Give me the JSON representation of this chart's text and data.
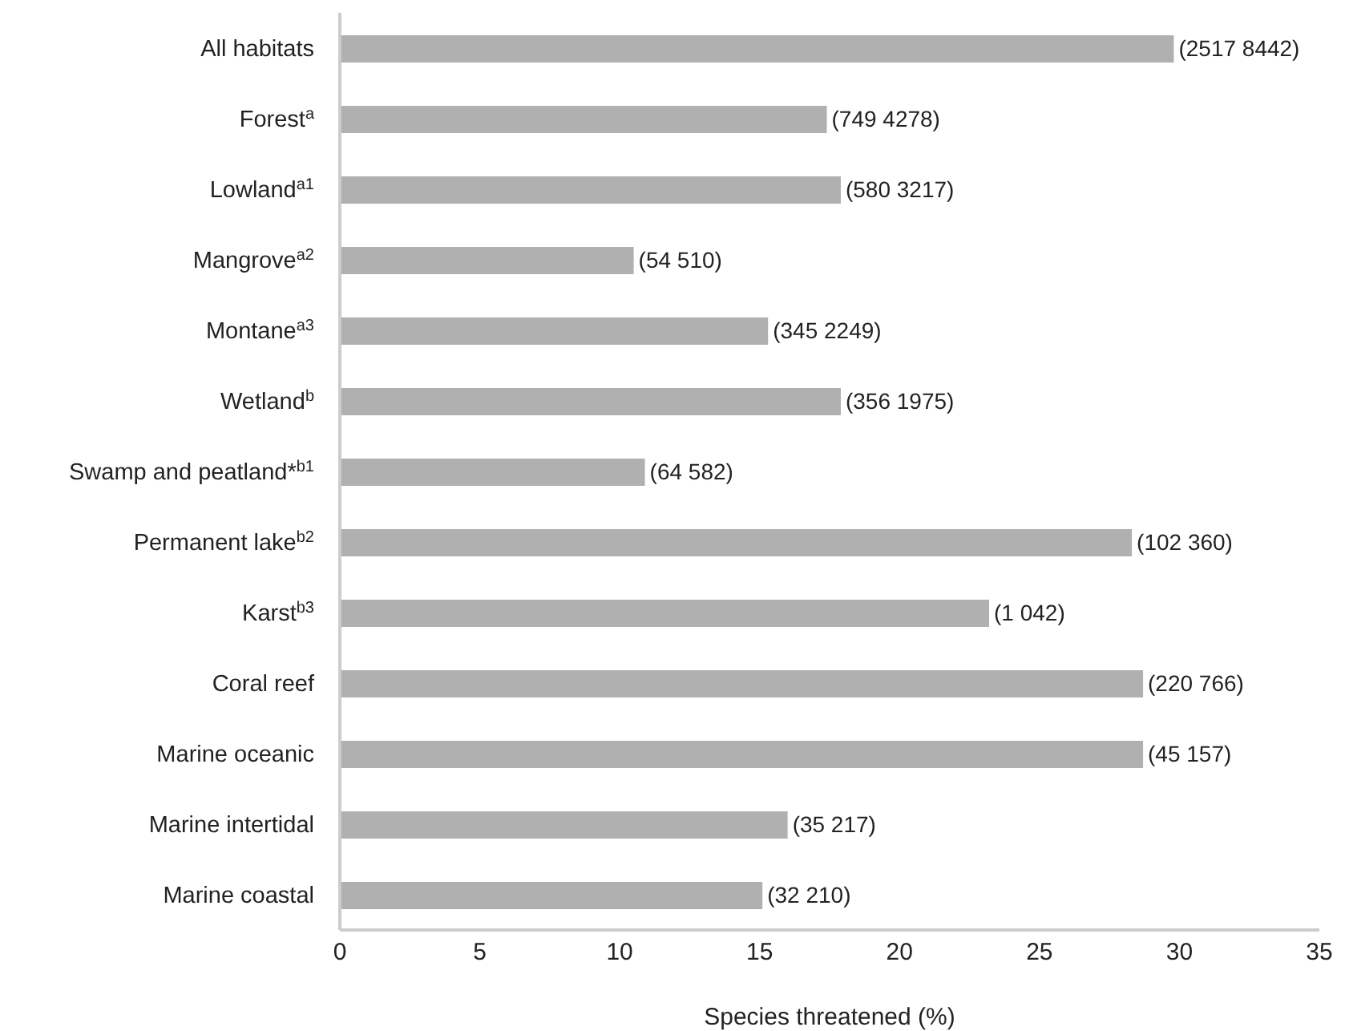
{
  "chart_data": {
    "type": "bar",
    "orientation": "horizontal",
    "categories": [
      "All habitats",
      "Forest$^{a}$",
      "Lowland$^{a1}$",
      "Mangrove$^{a2}$",
      "Montane$^{a3}$",
      "Wetland$^{b}$",
      "Swamp and peatland*$^{b1}$",
      "Permanent lake$^{b2}$",
      "Karst$^{b3}$",
      "Coral reef",
      "Marine oceanic",
      "Marine intertidal",
      "Marine coastal"
    ],
    "values": [
      29.8,
      17.4,
      17.9,
      10.5,
      15.3,
      17.9,
      10.9,
      28.3,
      23.2,
      28.7,
      28.7,
      16.0,
      15.1
    ],
    "annotations": [
      {
        "text": "(2517 8442)",
        "x": 29.8,
        "y": "All habitats"
      },
      {
        "text": "(749 4278)",
        "x": 17.4,
        "y": "Forest$^{a}$"
      },
      {
        "text": "(580 3217)",
        "x": 17.9,
        "y": "Lowland$^{a1}$"
      },
      {
        "text": "(54 510)",
        "x": 10.5,
        "y": "Mangrove$^{a2}$"
      },
      {
        "text": "(345 2249)",
        "x": 15.3,
        "y": "Montane$^{a3}$"
      },
      {
        "text": "(356 1975)",
        "x": 17.9,
        "y": "Wetland$^{b}$"
      },
      {
        "text": "(64 582)",
        "x": 10.9,
        "y": "Swamp and peatland*$^{b1}$"
      },
      {
        "text": "(102 360)",
        "x": 28.3,
        "y": "Permanent lake$^{b2}$"
      },
      {
        "text": "(1 042)",
        "x": 23.2,
        "y": "Karst$^{b3}$"
      },
      {
        "text": "(220 766)",
        "x": 28.7,
        "y": "Coral reef"
      },
      {
        "text": "(45 157)",
        "x": 28.7,
        "y": "Marine oceanic"
      },
      {
        "text": "(35 217)",
        "x": 16.0,
        "y": "Marine intertidal"
      },
      {
        "text": "(32 210)",
        "x": 15.1,
        "y": "Marine coastal"
      }
    ],
    "color": "#b0b0b0",
    "xlabel": "Species threatened (%)",
    "xlim": [
      0,
      35
    ],
    "xticks": [
      0,
      5,
      10,
      15,
      20,
      25,
      30,
      35
    ],
    "grid": false
  }
}
